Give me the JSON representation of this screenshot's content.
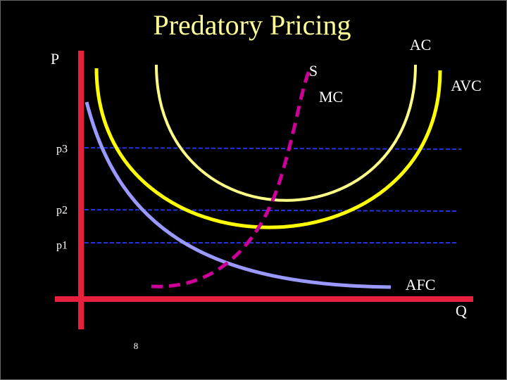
{
  "title": "Predatory Pricing",
  "axes": {
    "y_label": "P",
    "x_label": "Q"
  },
  "curves": {
    "ac": "AC",
    "avc": "AVC",
    "mc": "MC",
    "supply": "S",
    "afc": "AFC"
  },
  "price_levels": [
    "p3",
    "p2",
    "p1"
  ],
  "slide_number": "8"
}
